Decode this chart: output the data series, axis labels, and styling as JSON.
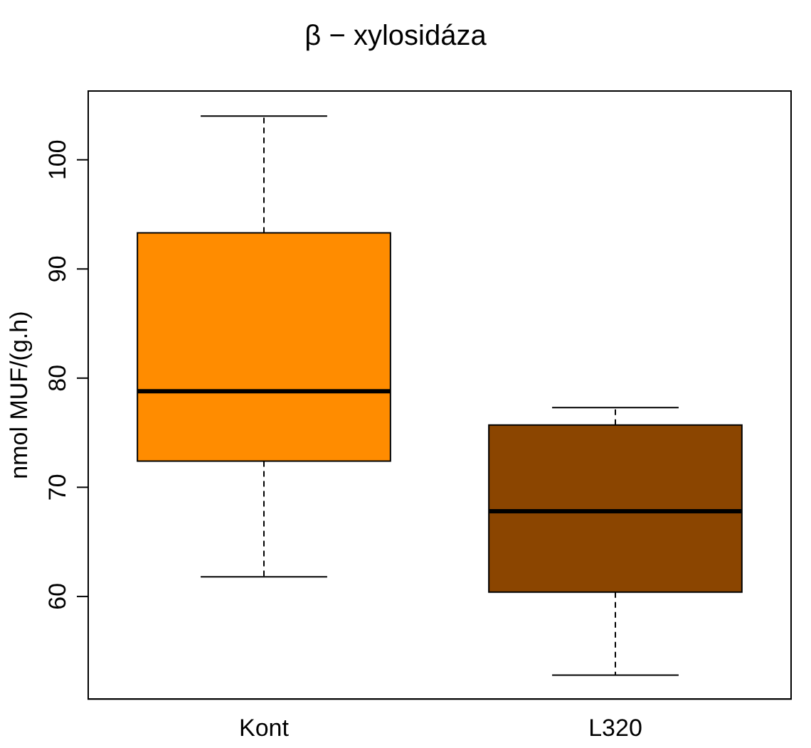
{
  "chart_data": {
    "type": "box",
    "title": "β − xylosidáza",
    "ylabel": "nmol MUF/(g.h)",
    "categories": [
      "Kont",
      "L320"
    ],
    "boxes": [
      {
        "low": 61.8,
        "q1": 72.4,
        "median": 78.8,
        "q3": 93.3,
        "high": 104
      },
      {
        "low": 52.8,
        "q1": 60.4,
        "median": 67.8,
        "q3": 75.7,
        "high": 77.3
      }
    ],
    "colors": [
      "#ff8c00",
      "#8b4500"
    ],
    "ylim": [
      50.6,
      106.3
    ],
    "yticks": [
      60,
      70,
      80,
      90,
      100
    ],
    "grid": false,
    "legend": false
  }
}
